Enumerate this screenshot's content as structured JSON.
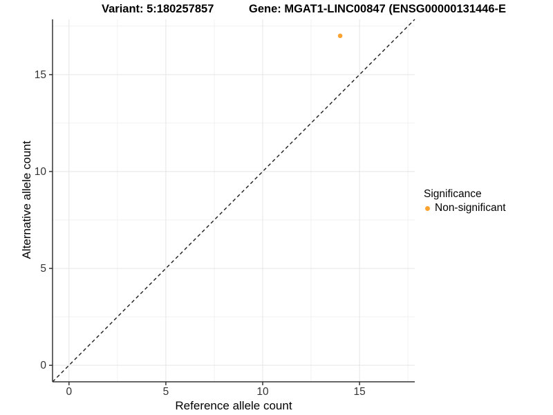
{
  "header": {
    "variant_title": "Variant: 5:180257857",
    "gene_title": "Gene: MGAT1-LINC00847 (ENSG00000131446-E"
  },
  "chart_data": {
    "type": "scatter",
    "title_left": "Variant: 5:180257857",
    "title_right": "Gene: MGAT1-LINC00847 (ENSG00000131446-E",
    "xlabel": "Reference allele count",
    "ylabel": "Alternative allele count",
    "xlim": [
      -0.85,
      17.85
    ],
    "ylim": [
      -0.85,
      17.85
    ],
    "x_major_ticks": [
      0,
      5,
      10,
      15
    ],
    "y_major_ticks": [
      0,
      5,
      10,
      15
    ],
    "x_minor_gridlines": [
      2.5,
      7.5,
      12.5,
      17.5
    ],
    "y_minor_gridlines": [
      2.5,
      7.5,
      12.5,
      17.5
    ],
    "grid": true,
    "identity_line": {
      "style": "dashed",
      "x1": -0.85,
      "y1": -0.85,
      "x2": 17.85,
      "y2": 17.85
    },
    "series": [
      {
        "name": "Non-significant",
        "color": "#FCA432",
        "points": [
          {
            "x": 14,
            "y": 17
          }
        ]
      }
    ],
    "legend": {
      "title": "Significance",
      "position": "right",
      "items": [
        {
          "label": "Non-significant",
          "color": "#FCA432"
        }
      ]
    },
    "colors": {
      "axis_line": "#333333",
      "tick_text": "#333333",
      "grid_major": "#e5e5e5",
      "grid_minor": "#f1f1f1",
      "identity_line": "#1a1a1a",
      "point": "#FCA432"
    }
  }
}
